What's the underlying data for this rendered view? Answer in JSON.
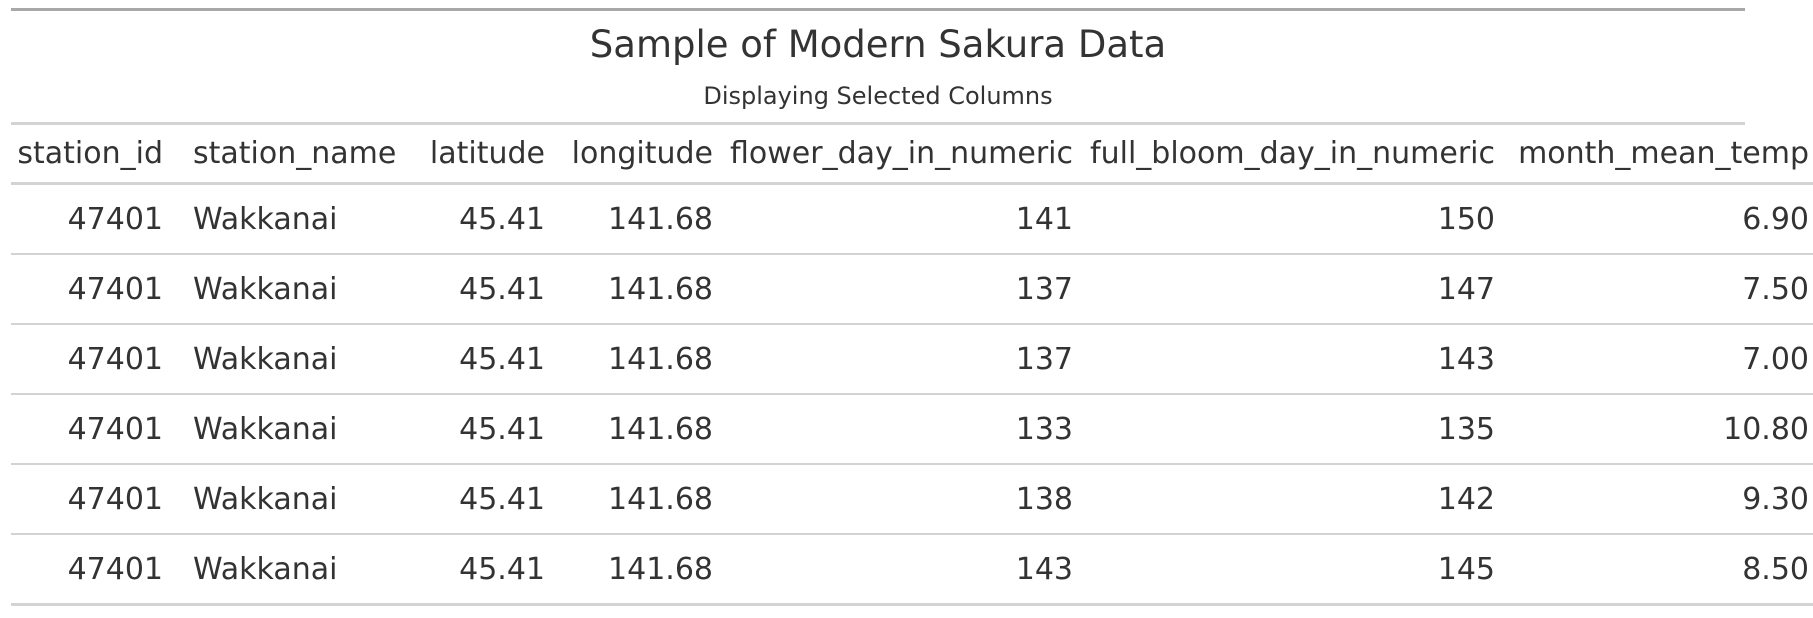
{
  "table": {
    "title": "Sample of Modern Sakura Data",
    "subtitle": "Displaying Selected Columns",
    "columns": [
      "station_id",
      "station_name",
      "latitude",
      "longitude",
      "flower_day_in_numeric",
      "full_bloom_day_in_numeric",
      "month_mean_temp"
    ],
    "rows": [
      [
        "47401",
        "Wakkanai",
        "45.41",
        "141.68",
        "141",
        "150",
        "6.90"
      ],
      [
        "47401",
        "Wakkanai",
        "45.41",
        "141.68",
        "137",
        "147",
        "7.50"
      ],
      [
        "47401",
        "Wakkanai",
        "45.41",
        "141.68",
        "137",
        "143",
        "7.00"
      ],
      [
        "47401",
        "Wakkanai",
        "45.41",
        "141.68",
        "133",
        "135",
        "10.80"
      ],
      [
        "47401",
        "Wakkanai",
        "45.41",
        "141.68",
        "138",
        "142",
        "9.30"
      ],
      [
        "47401",
        "Wakkanai",
        "45.41",
        "141.68",
        "143",
        "145",
        "8.50"
      ]
    ]
  }
}
